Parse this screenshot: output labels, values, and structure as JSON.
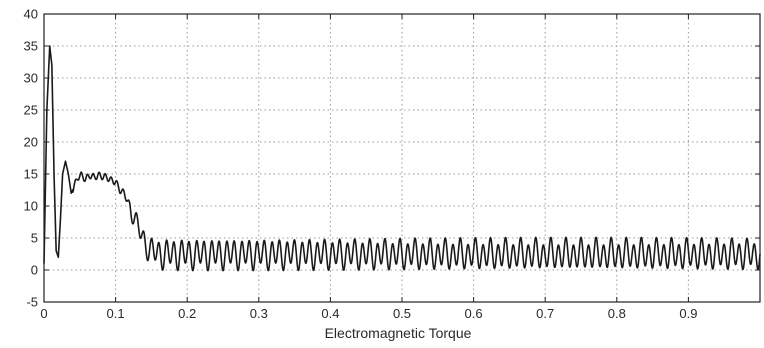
{
  "chart_data": {
    "type": "line",
    "title": "",
    "xlabel": "Electromagnetic Torque",
    "ylabel": "",
    "xlim": [
      0,
      1
    ],
    "ylim": [
      -5,
      40
    ],
    "x_ticks": [
      "0",
      "0.1",
      "0.2",
      "0.3",
      "0.4",
      "0.5",
      "0.6",
      "0.7",
      "0.8",
      "0.9"
    ],
    "y_ticks": [
      "-5",
      "0",
      "5",
      "10",
      "15",
      "20",
      "25",
      "30",
      "35",
      "40"
    ],
    "grid": true,
    "legend": "none",
    "series": [
      {
        "color": "#1a1a1a",
        "x": [
          0,
          0.004,
          0.008,
          0.011,
          0.014,
          0.017,
          0.02,
          0.023,
          0.026,
          0.03,
          0.034,
          0.038,
          0.042,
          0.047,
          0.052,
          0.058,
          0.064,
          0.07,
          0.076,
          0.082,
          0.088,
          0.094,
          0.1,
          0.106,
          0.112,
          0.118,
          0.124,
          0.13,
          0.136,
          0.142,
          0.148,
          0.154,
          0.16,
          0.166,
          0.172,
          0.18,
          0.19,
          0.2,
          0.25,
          0.3,
          0.35,
          0.4,
          0.45,
          0.5,
          0.55,
          0.6,
          0.65,
          0.7,
          0.75,
          0.8,
          0.85,
          0.9,
          0.95,
          1.0
        ],
        "y": [
          1,
          25,
          35,
          32,
          15,
          3,
          2,
          8,
          15,
          17,
          15,
          12,
          13,
          14.5,
          14.8,
          14.2,
          14.8,
          14.5,
          14.8,
          14.6,
          14.5,
          14.0,
          13.8,
          12.5,
          12.0,
          10.5,
          9.0,
          7.0,
          5.5,
          4.0,
          3.2,
          2.8,
          2.6,
          2.5,
          2.5,
          2.5,
          2.5,
          2.5,
          2.5,
          2.5,
          2.5,
          2.5,
          2.5,
          2.5,
          2.5,
          2.5,
          2.5,
          2.5,
          2.5,
          2.5,
          2.5,
          2.5,
          2.5,
          2.5
        ]
      }
    ]
  }
}
